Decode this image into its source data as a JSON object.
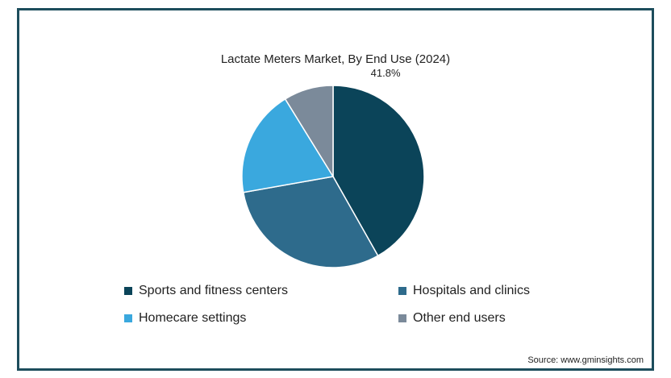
{
  "chart_data": {
    "type": "pie",
    "title": "Lactate Meters Market, By End Use (2024)",
    "slices": [
      {
        "name": "Sports and fitness centers",
        "value": 41.8,
        "label": "41.8%",
        "color": "#0b4459"
      },
      {
        "name": "Hospitals and clinics",
        "value": 30.4,
        "label": "",
        "color": "#2e6b8c"
      },
      {
        "name": "Homecare settings",
        "value": 19.0,
        "label": "",
        "color": "#3aa8de"
      },
      {
        "name": "Other end users",
        "value": 8.8,
        "label": "",
        "color": "#7b8a9a"
      }
    ],
    "legend_position": "bottom",
    "source": "Source: www.gminsights.com"
  }
}
